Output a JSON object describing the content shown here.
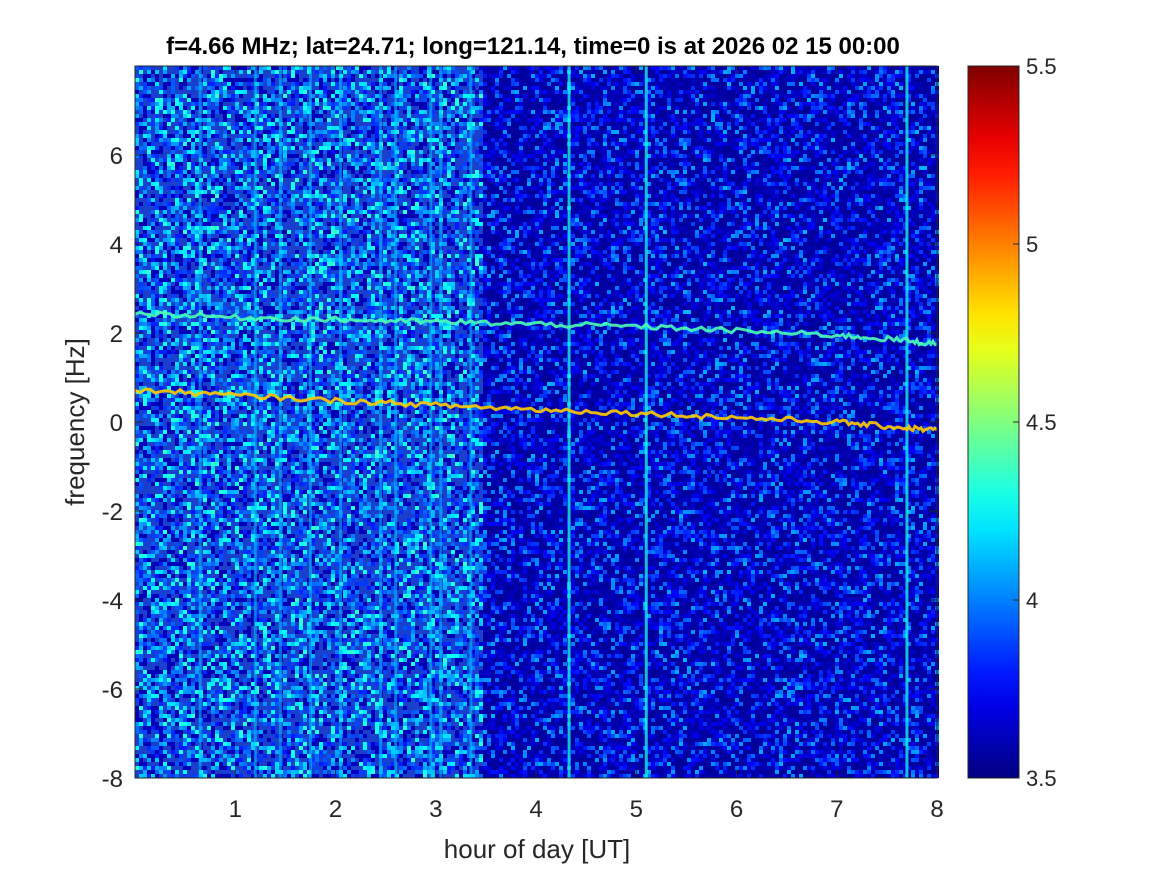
{
  "chart_data": {
    "type": "heatmap",
    "title": "f=4.66 MHz;  lat=24.71; long=121.14, time=0 is at 2026 02 15 00:00",
    "xlabel": "hour of day [UT]",
    "ylabel": "frequency [Hz]",
    "xlim": [
      0,
      8
    ],
    "ylim": [
      -8,
      8
    ],
    "xticks": [
      "1",
      "2",
      "3",
      "4",
      "5",
      "6",
      "7",
      "8"
    ],
    "yticks": [
      "-8",
      "-6",
      "-4",
      "-2",
      "0",
      "2",
      "4",
      "6"
    ],
    "colorbar": {
      "range": [
        3.5,
        5.5
      ],
      "ticks": [
        "3.5",
        "4",
        "4.5",
        "5",
        "5.5"
      ],
      "colormap": "jet"
    },
    "background_level": 3.75,
    "noisy_interval_hours": [
      0,
      3.45
    ],
    "traces": [
      {
        "x": [
          0,
          1,
          2,
          3,
          4,
          5,
          6,
          7,
          7.6,
          8
        ],
        "y": [
          2.45,
          2.35,
          2.3,
          2.25,
          2.2,
          2.15,
          2.05,
          1.95,
          1.85,
          1.75
        ],
        "level": 4.4
      },
      {
        "x": [
          0,
          1,
          2,
          3,
          4,
          5,
          6,
          7,
          7.6,
          8
        ],
        "y": [
          0.72,
          0.6,
          0.48,
          0.38,
          0.28,
          0.2,
          0.1,
          0.0,
          -0.12,
          -0.18
        ],
        "level": 4.85
      }
    ],
    "vertical_streaks_hours": [
      0.65,
      1.2,
      1.45,
      1.75,
      2.05,
      2.45,
      2.6,
      2.95,
      3.05,
      3.35,
      4.33,
      5.1,
      7.7
    ]
  }
}
